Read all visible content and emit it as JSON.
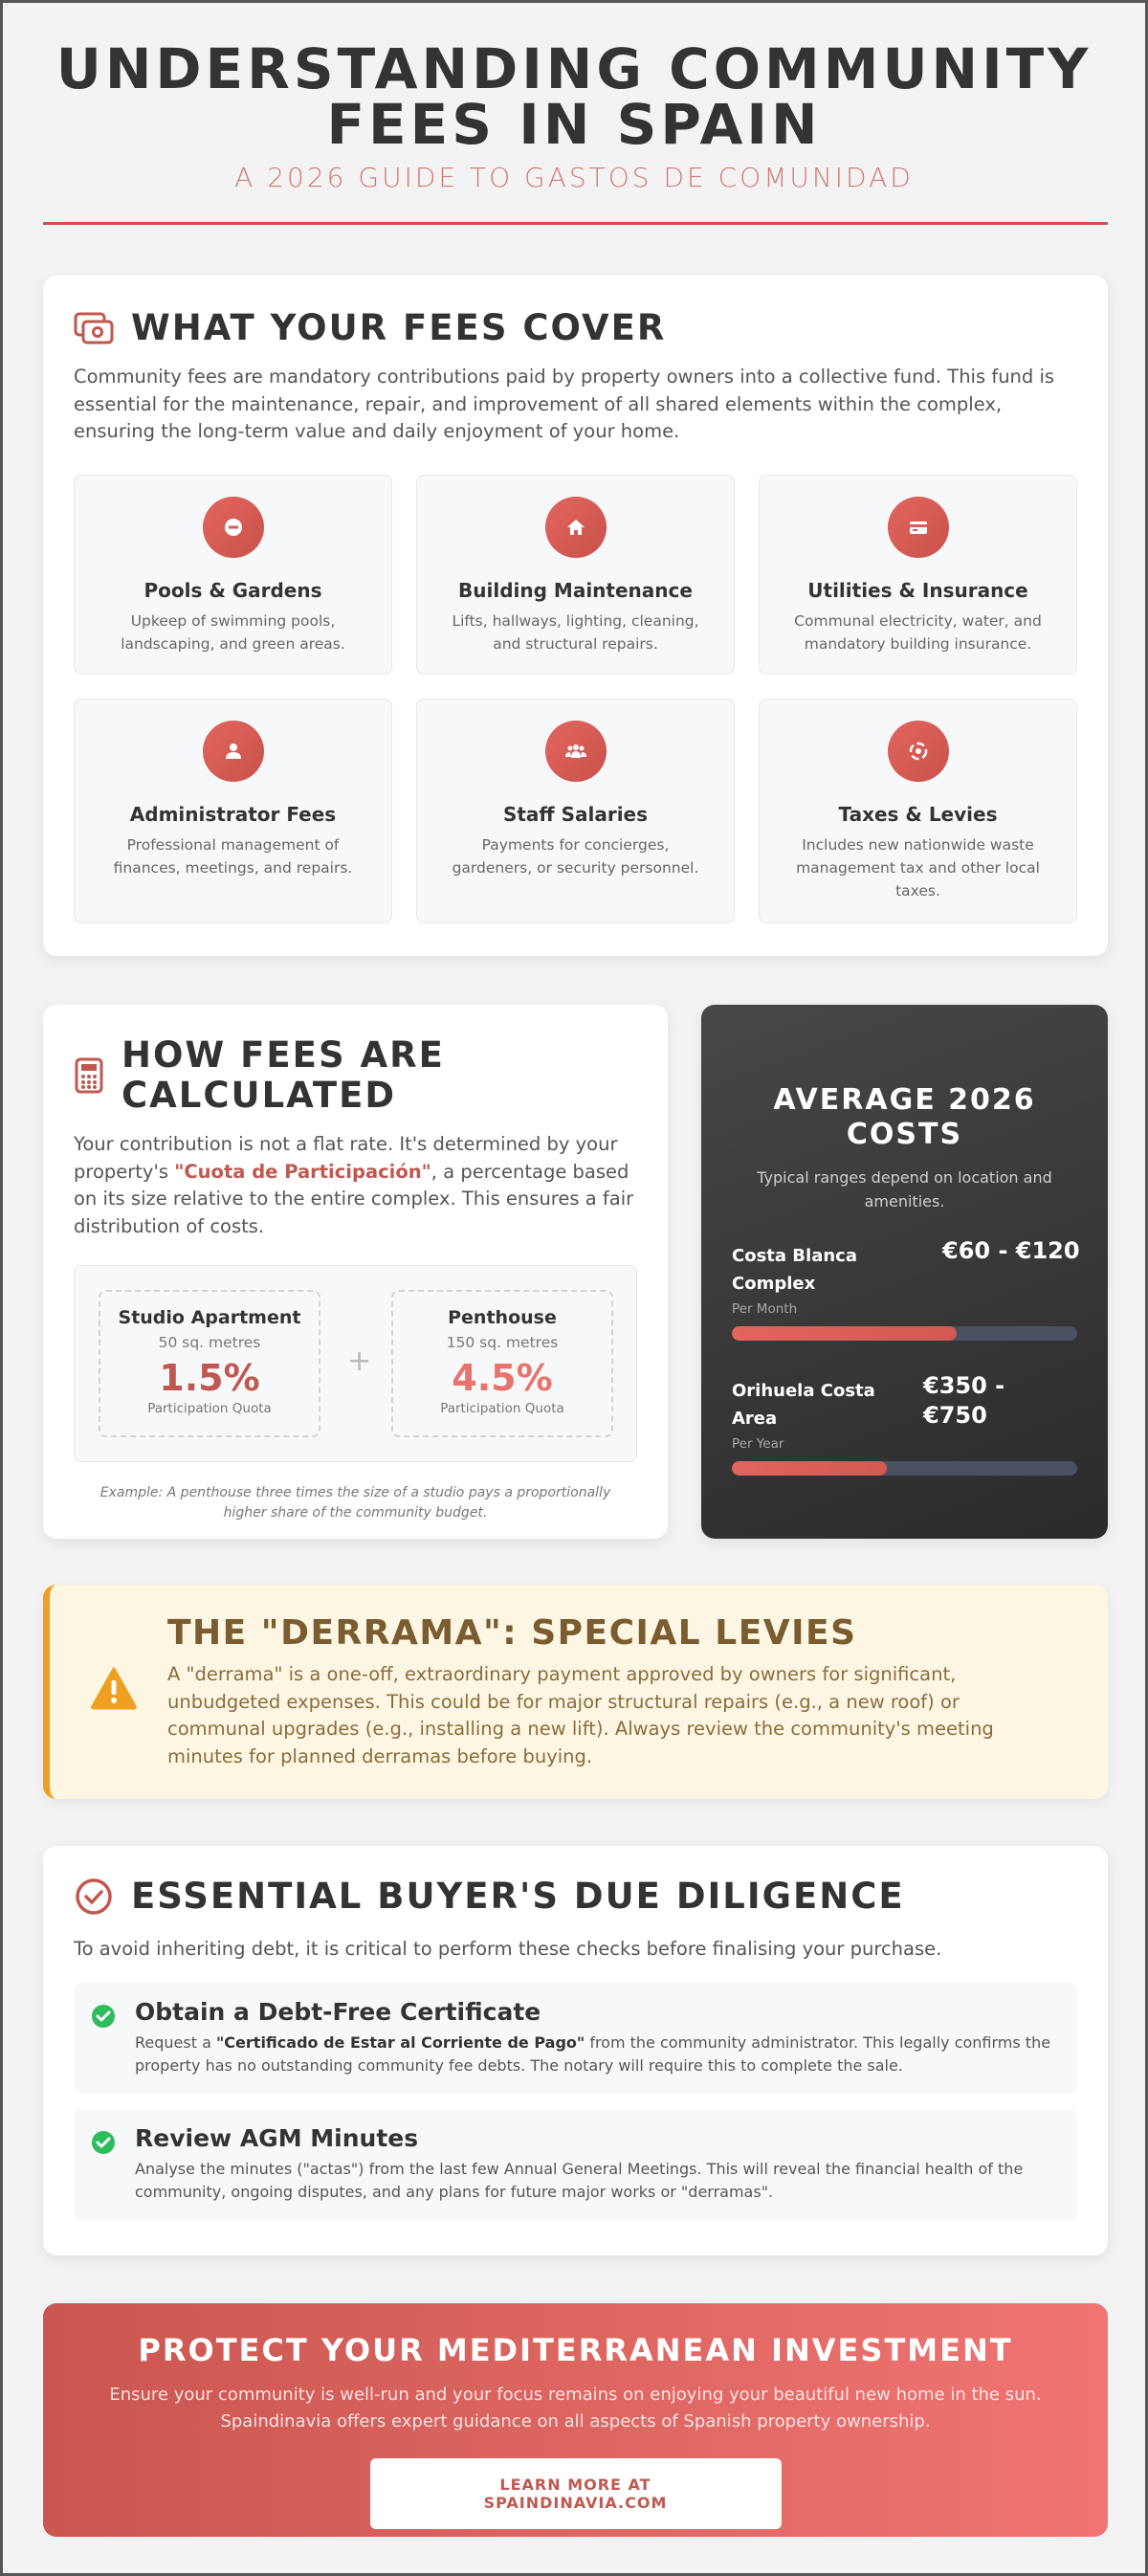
{
  "header": {
    "title": "UNDERSTANDING COMMUNITY FEES IN SPAIN",
    "subtitle": "A 2026 GUIDE TO GASTOS DE COMUNIDAD"
  },
  "cover": {
    "title": "WHAT YOUR FEES COVER",
    "intro": "Community fees are mandatory contributions paid by property owners into a collective fund. This fund is essential for the maintenance, repair, and improvement of all shared elements within the complex, ensuring the long-term value and daily enjoyment of your home.",
    "items": [
      {
        "title": "Pools & Gardens",
        "desc": "Upkeep of swimming pools, landscaping, and green areas."
      },
      {
        "title": "Building Maintenance",
        "desc": "Lifts, hallways, lighting, cleaning, and structural repairs."
      },
      {
        "title": "Utilities & Insurance",
        "desc": "Communal electricity, water, and mandatory building insurance."
      },
      {
        "title": "Administrator Fees",
        "desc": "Professional management of finances, meetings, and repairs."
      },
      {
        "title": "Staff Salaries",
        "desc": "Payments for concierges, gardeners, or security personnel."
      },
      {
        "title": "Taxes & Levies",
        "desc": "Includes new nationwide waste management tax and other local taxes."
      }
    ]
  },
  "calculation": {
    "title": "HOW FEES ARE CALCULATED",
    "intro_before": "Your contribution is not a flat rate. It's determined by your property's ",
    "intro_highlight": "\"Cuota de Participación\"",
    "intro_after": ", a percentage based on its size relative to the entire complex. This ensures a fair distribution of costs.",
    "examples": [
      {
        "name": "Studio Apartment",
        "size": "50 sq. metres",
        "quota": "1.5%",
        "label": "Participation Quota"
      },
      {
        "name": "Penthouse",
        "size": "150 sq. metres",
        "quota": "4.5%",
        "label": "Participation Quota"
      }
    ],
    "note": "Example: A penthouse three times the size of a studio pays a proportionally higher share of the community budget."
  },
  "costs": {
    "title": "AVERAGE 2026 COSTS",
    "subtitle": "Typical ranges depend on location and amenities.",
    "items": [
      {
        "name": "Costa Blanca Complex",
        "amount": "€60 - €120",
        "period": "Per Month"
      },
      {
        "name": "Orihuela Costa Area",
        "amount": "€350 - €750",
        "period": "Per Year"
      }
    ]
  },
  "derrama": {
    "title": "THE \"DERRAMA\": SPECIAL LEVIES",
    "text": "A \"derrama\" is a one-off, extraordinary payment approved by owners for significant, unbudgeted expenses. This could be for major structural repairs (e.g., a new roof) or communal upgrades (e.g., installing a new lift). Always review the community's meeting minutes for planned derramas before buying."
  },
  "diligence": {
    "title": "ESSENTIAL BUYER'S DUE DILIGENCE",
    "intro": "To avoid inheriting debt, it is critical to perform these checks before finalising your purchase.",
    "items": [
      {
        "title": "Obtain a Debt-Free Certificate",
        "desc_before": "Request a ",
        "desc_bold": "\"Certificado de Estar al Corriente de Pago\"",
        "desc_after": " from the community administrator. This legally confirms the property has no outstanding community fee debts. The notary will require this to complete the sale."
      },
      {
        "title": "Review AGM Minutes",
        "desc_before": "Analyse the minutes (\"actas\") from the last few Annual General Meetings. This will reveal the financial health of the community, ongoing disputes, and any plans for future major works or \"derramas\"."
      }
    ]
  },
  "cta": {
    "title": "PROTECT YOUR MEDITERRANEAN INVESTMENT",
    "text": "Ensure your community is well-run and your focus remains on enjoying your beautiful new home in the sun. Spaindinavia offers expert guidance on all aspects of Spanish property ownership.",
    "button": "LEARN MORE AT SPAINDINAVIA.COM"
  }
}
